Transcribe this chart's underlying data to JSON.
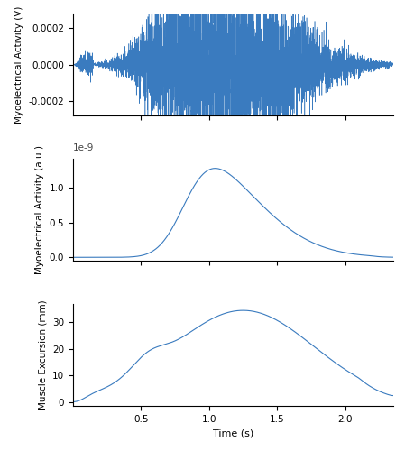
{
  "line_color": "#3a7bbf",
  "line_width": 0.8,
  "background_color": "#ffffff",
  "x_min": 0.0,
  "x_max": 2.35,
  "subplot1_ylabel": "Myoelectrical Activity (V)",
  "subplot2_ylabel": "Myoelectrical Activity (a.u.)",
  "subplot3_ylabel": "Muscle Excursion (mm)",
  "xlabel": "Time (s)",
  "subplot2_scale_label": "1e-9",
  "emg_ylim": [
    -0.00028,
    0.00028
  ],
  "filtered_ylim": [
    -0.05,
    1.42
  ],
  "smg_ylim": [
    -1.5,
    37
  ],
  "emg_yticks": [
    -0.0002,
    0.0,
    0.0002
  ],
  "filtered_yticks": [
    0.0,
    0.5,
    1.0
  ],
  "smg_yticks": [
    0,
    10,
    20,
    30
  ],
  "xticks": [
    0.5,
    1.0,
    1.5,
    2.0
  ],
  "xtick_labels": [
    "0.5",
    "1.0",
    "1.5",
    "2.0"
  ]
}
